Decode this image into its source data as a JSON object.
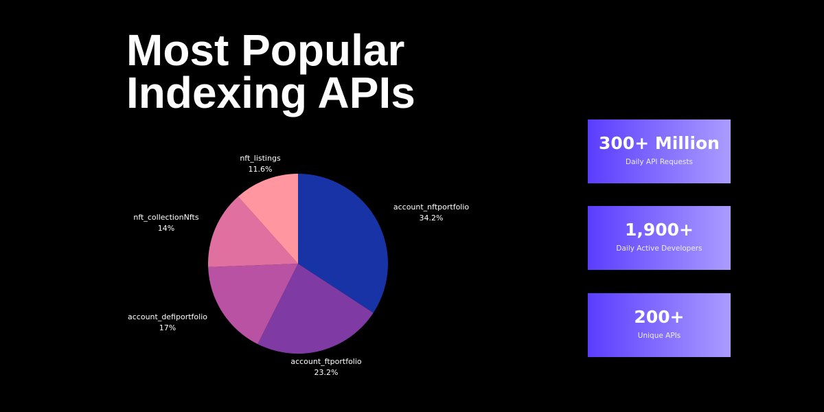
{
  "title": {
    "line1": "Most Popular",
    "line2": "Indexing APIs"
  },
  "chart_data": {
    "type": "pie",
    "start": "top",
    "direction": "clockwise",
    "slices": [
      {
        "label": "account_nftportfolio",
        "value": 34.2,
        "display": "34.2%",
        "color": "#1733a6"
      },
      {
        "label": "account_ftportfolio",
        "value": 23.2,
        "display": "23.2%",
        "color": "#7f3aa4"
      },
      {
        "label": "account_defiportfolio",
        "value": 17,
        "display": "17%",
        "color": "#b952a3"
      },
      {
        "label": "nft_collectionNfts",
        "value": 14,
        "display": "14%",
        "color": "#df70a0"
      },
      {
        "label": "nft_listings",
        "value": 11.6,
        "display": "11.6%",
        "color": "#ff96a0"
      }
    ]
  },
  "stats": [
    {
      "value": "300+ Million",
      "label": "Daily API Requests"
    },
    {
      "value": "1,900+",
      "label": "Daily Active Developers"
    },
    {
      "value": "200+",
      "label": "Unique APIs"
    }
  ]
}
